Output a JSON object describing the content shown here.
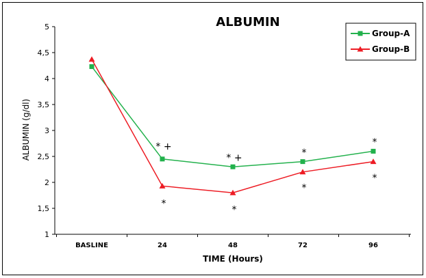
{
  "chart_data": {
    "type": "line",
    "title": "ALBUMIN",
    "xlabel": "TIME (Hours)",
    "ylabel": "ALBUMIN (g/dl)",
    "categories": [
      "BASLINE",
      "24",
      "48",
      "72",
      "96"
    ],
    "ylim": [
      1,
      5
    ],
    "yticks": [
      "1",
      "1,5",
      "2",
      "2,5",
      "3",
      "3,5",
      "4",
      "4,5",
      "5"
    ],
    "grid": false,
    "legend": "top-right",
    "series": [
      {
        "name": "Group-A",
        "color": "#22b14c",
        "marker": "square",
        "values": [
          4.23,
          2.45,
          2.3,
          2.4,
          2.6
        ]
      },
      {
        "name": "Group-B",
        "color": "#ed1c24",
        "marker": "triangle",
        "values": [
          4.37,
          1.93,
          1.8,
          2.2,
          2.4
        ]
      }
    ],
    "annotations": [
      {
        "category": "24",
        "y": 2.74,
        "text": "* +"
      },
      {
        "category": "24",
        "y": 1.64,
        "text": "*"
      },
      {
        "category": "48",
        "y": 2.52,
        "text": "* +"
      },
      {
        "category": "48",
        "y": 1.52,
        "text": "*"
      },
      {
        "category": "72",
        "y": 2.62,
        "text": "*"
      },
      {
        "category": "72",
        "y": 1.94,
        "text": "*"
      },
      {
        "category": "96",
        "y": 2.82,
        "text": "*"
      },
      {
        "category": "96",
        "y": 2.13,
        "text": "*"
      }
    ]
  }
}
